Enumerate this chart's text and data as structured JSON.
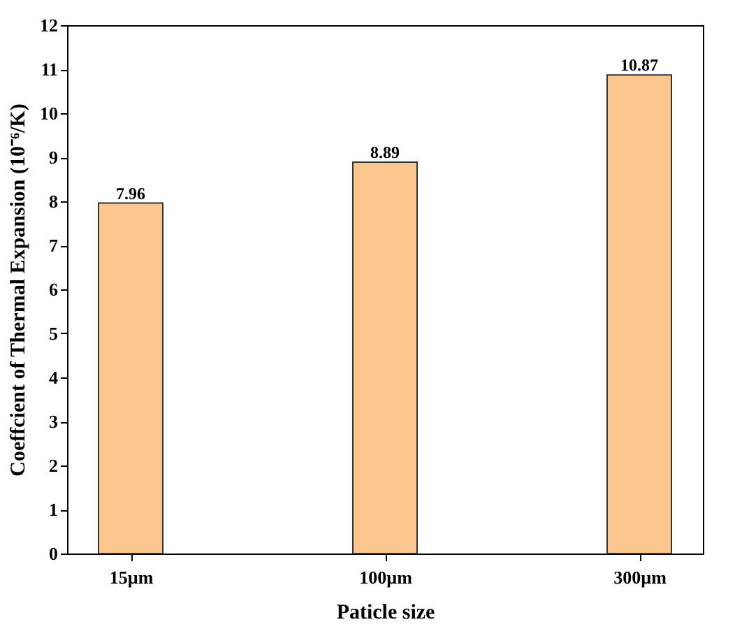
{
  "chart_data": {
    "type": "bar",
    "xlabel": "Paticle size",
    "ylabel": "Coeffcient of Thermal Expansion (10⁻⁶/K)",
    "categories": [
      "15µm",
      "100µm",
      "300µm"
    ],
    "values": [
      7.96,
      8.89,
      10.87
    ],
    "color": "#fbc78f",
    "ylim": [
      0,
      12
    ],
    "yticks": [
      0,
      1,
      2,
      3,
      4,
      5,
      6,
      7,
      8,
      9,
      10,
      11,
      12
    ],
    "data_labels": true,
    "grid": false
  }
}
